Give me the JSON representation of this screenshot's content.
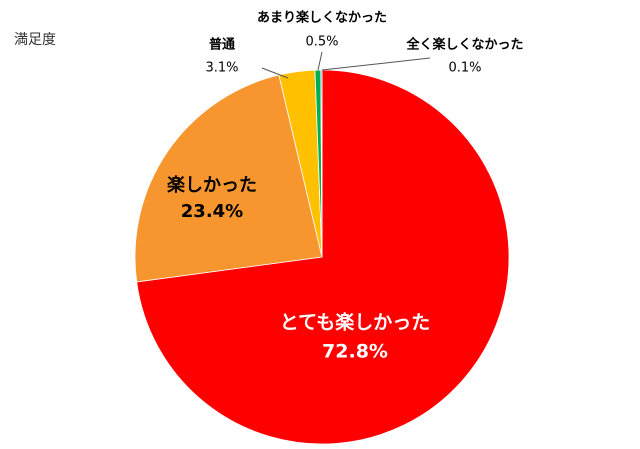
{
  "chart_data": {
    "type": "pie",
    "title": "満足度",
    "categories": [
      "とても楽しかった",
      "楽しかった",
      "普通",
      "あまり楽しくなかった",
      "全く楽しくなかった"
    ],
    "values": [
      72.8,
      23.4,
      3.1,
      0.5,
      0.1
    ],
    "value_labels": [
      "72.8%",
      "23.4%",
      "3.1%",
      "0.5%",
      "0.1%"
    ],
    "colors": [
      "#ff0000",
      "#f7962e",
      "#ffc000",
      "#00b050",
      "#4472c4"
    ]
  }
}
